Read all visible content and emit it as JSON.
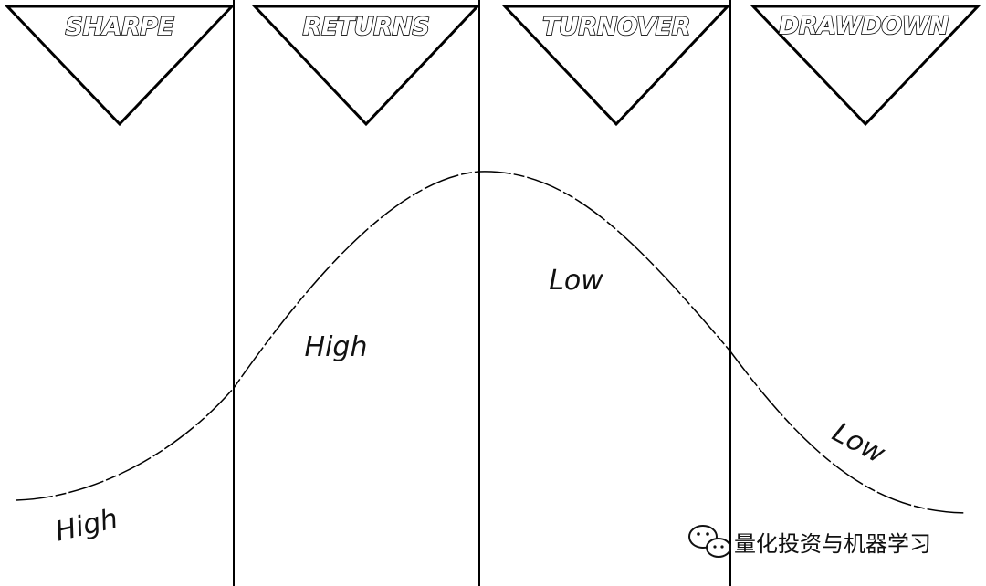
{
  "panels": [
    {
      "id": "sharpe",
      "title": "SHARPE",
      "level": "High"
    },
    {
      "id": "returns",
      "title": "RETURNS",
      "level": "High"
    },
    {
      "id": "turnover",
      "title": "TURNOVER",
      "level": "Low"
    },
    {
      "id": "drawdown",
      "title": "DRAWDOWN",
      "level": "Low"
    }
  ],
  "watermark": {
    "text": "量化投资与机器学习",
    "icon": "wechat-icon"
  },
  "colors": {
    "ink": "#000000",
    "background": "#ffffff"
  }
}
